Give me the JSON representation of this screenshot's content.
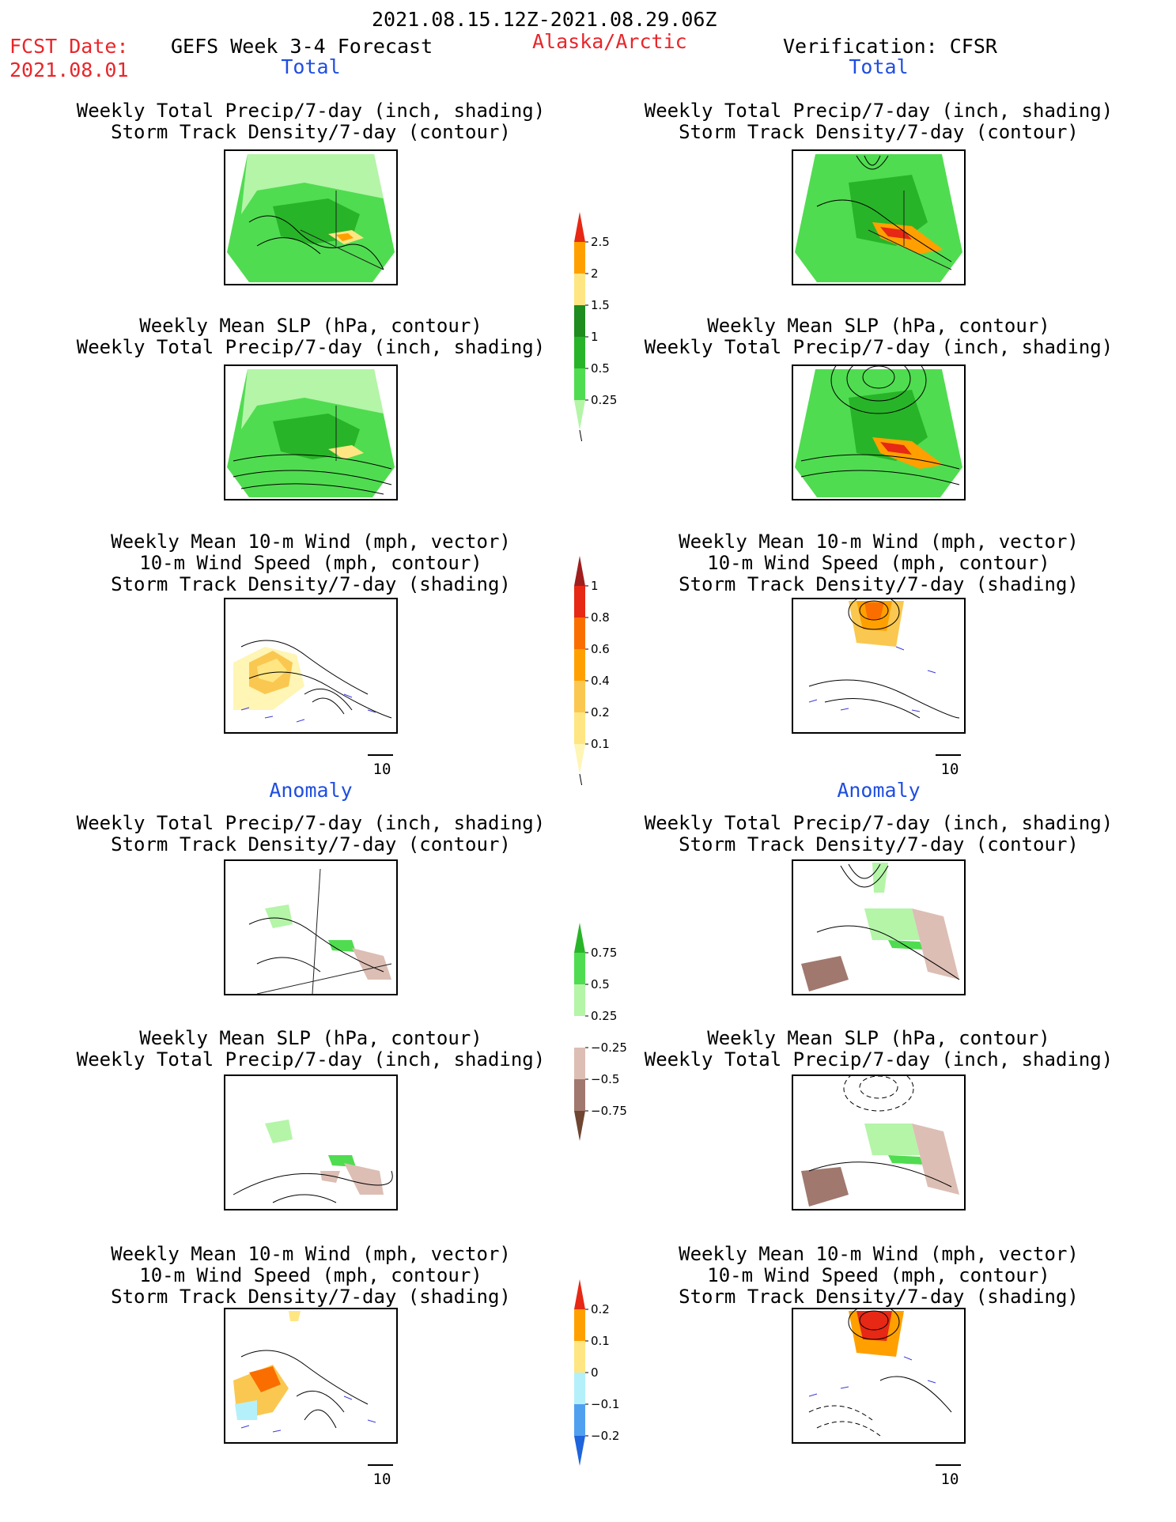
{
  "header": {
    "date_range": "2021.08.15.12Z-2021.08.29.06Z",
    "fcst_date_label": "FCST Date:",
    "fcst_date_value": "2021.08.01",
    "model": "GEFS Week 3-4 Forecast",
    "region": "Alaska/Arctic",
    "verification": "Verification: CFSR"
  },
  "sections": {
    "total": "Total",
    "anomaly": "Anomaly"
  },
  "panel_titles": {
    "precip_storm": [
      "Weekly Total Precip/7-day (inch, shading)",
      "Storm Track Density/7-day (contour)"
    ],
    "slp_precip": [
      "Weekly Mean SLP (hPa, contour)",
      "Weekly Total Precip/7-day (inch, shading)"
    ],
    "wind_storm": [
      "Weekly Mean 10-m Wind (mph, vector)",
      "10-m Wind Speed (mph, contour)",
      "Storm Track Density/7-day (shading)"
    ]
  },
  "vector_reference": "10",
  "colors": {
    "header_red": "#e8262a",
    "section_blue": "#1f4ee0"
  },
  "chart_data": [
    {
      "type": "heatmap",
      "name": "Total precipitation colorbar",
      "levels": [
        0.25,
        0.5,
        1,
        1.5,
        2,
        2.5
      ],
      "tick_labels": [
        "2.5",
        "2",
        "1.5",
        "1",
        "0.5",
        "0.25"
      ],
      "colors": [
        "#b4f5a8",
        "#50dc50",
        "#28b428",
        "#1e8c1e",
        "#ffe682",
        "#ffa000",
        "#e62814"
      ]
    },
    {
      "type": "heatmap",
      "name": "Total storm track density colorbar",
      "levels": [
        0.1,
        0.2,
        0.4,
        0.6,
        0.8,
        1
      ],
      "tick_labels": [
        "1",
        "0.8",
        "0.6",
        "0.4",
        "0.2",
        "0.1"
      ],
      "colors": [
        "#fff5b4",
        "#ffe682",
        "#fac850",
        "#ffa000",
        "#fa6e00",
        "#e62814",
        "#a01e1e"
      ]
    },
    {
      "type": "heatmap",
      "name": "Anomaly precipitation colorbar",
      "levels": [
        -0.75,
        -0.5,
        -0.25,
        0.25,
        0.5,
        0.75
      ],
      "tick_labels": [
        "0.75",
        "0.5",
        "0.25",
        "−0.25",
        "−0.5",
        "−0.75"
      ],
      "colors": [
        "#6e4632",
        "#a0786e",
        "#dcbeb4",
        "#ffffff",
        "#b4f5a8",
        "#50dc50",
        "#28b428"
      ]
    },
    {
      "type": "heatmap",
      "name": "Anomaly storm track density colorbar",
      "levels": [
        -0.2,
        -0.1,
        0,
        0.1,
        0.2
      ],
      "tick_labels": [
        "0.2",
        "0.1",
        "0",
        "−0.1",
        "−0.2"
      ],
      "colors": [
        "#1e64dc",
        "#50a0f0",
        "#b4f0fa",
        "#ffe682",
        "#ffa000",
        "#e62814"
      ]
    }
  ]
}
